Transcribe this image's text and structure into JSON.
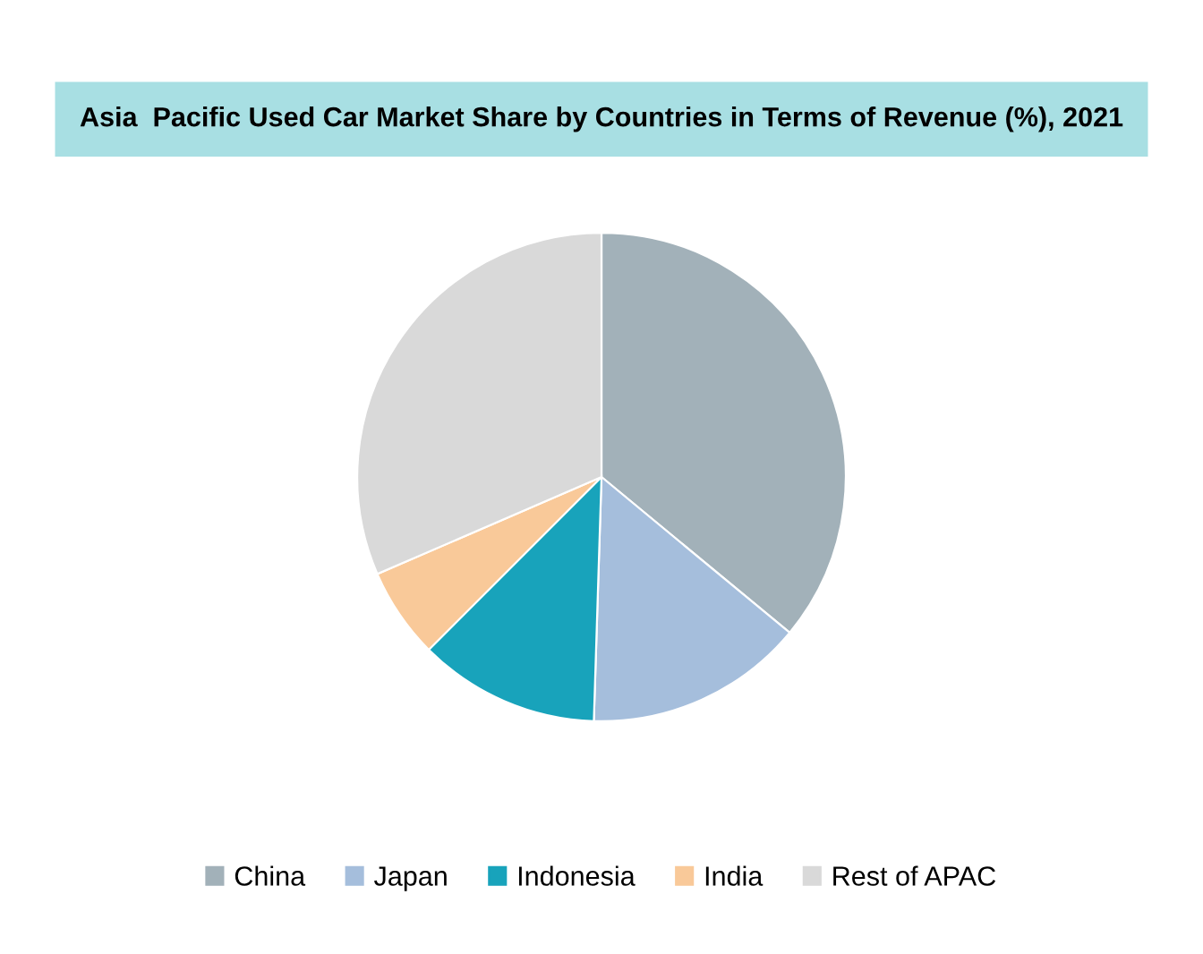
{
  "chart_data": {
    "type": "pie",
    "title": "Asia  Pacific Used Car Market Share by Countries in Terms of Revenue (%), 2021",
    "categories": [
      "China",
      "Japan",
      "Indonesia",
      "India",
      "Rest of APAC"
    ],
    "values": [
      36,
      14.5,
      12,
      6,
      31.5
    ],
    "colors": [
      "#a2b1b9",
      "#a5bedc",
      "#18a3bb",
      "#f9c999",
      "#d9d9d9"
    ],
    "legend": "bottom"
  }
}
